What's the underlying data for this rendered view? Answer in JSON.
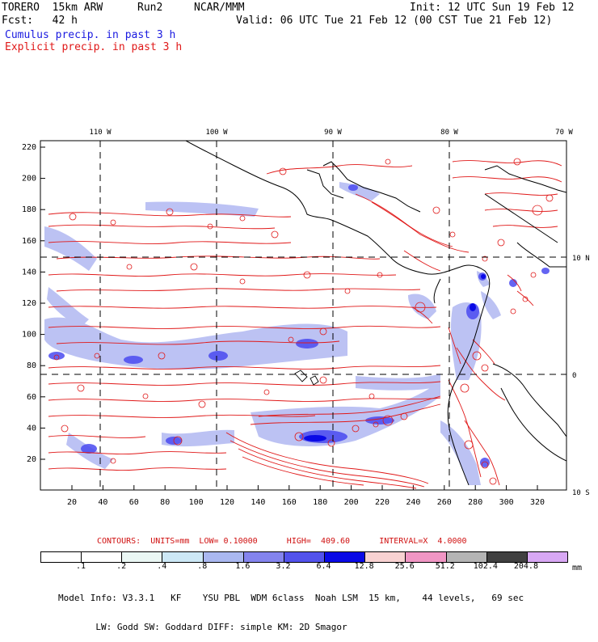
{
  "header": {
    "model": "TORERO  15km ARW",
    "run": "Run2",
    "org": "NCAR/MMM",
    "init": "Init: 12 UTC Sun 19 Feb 12",
    "fcst": "Fcst:   42 h",
    "valid": "Valid: 06 UTC Tue 21 Feb 12 (00 CST Tue 21 Feb 12)",
    "field1": "Cumulus precip. in past 3 h",
    "field2": "Explicit precip. in past 3 h"
  },
  "map": {
    "lon_labels": [
      "110 W",
      "100 W",
      "90 W",
      "80 W",
      "70 W"
    ],
    "lat_labels": [
      "10 N",
      "0",
      "10 S"
    ],
    "y_ticks": [
      "220",
      "200",
      "180",
      "160",
      "140",
      "120",
      "100",
      "80",
      "60",
      "40",
      "20"
    ],
    "x_ticks": [
      "20",
      "40",
      "60",
      "80",
      "100",
      "120",
      "140",
      "160",
      "180",
      "200",
      "220",
      "240",
      "260",
      "280",
      "300",
      "320"
    ],
    "colors": {
      "cumulus": "#4a4af0",
      "explicit": "#e01818",
      "land": "#000000",
      "grid": "#000000"
    }
  },
  "contours_line": "CONTOURS:  UNITS=mm  LOW= 0.10000      HIGH=  409.60      INTERVAL=X  4.0000",
  "colorbar": {
    "labels": [
      ".1",
      ".2",
      ".4",
      ".8",
      "1.6",
      "3.2",
      "6.4",
      "12.8",
      "25.6",
      "51.2",
      "102.4",
      "204.8"
    ],
    "unit": "mm",
    "colors": [
      "#ffffff",
      "#ffffff",
      "#eaf7f4",
      "#cde8f6",
      "#aab8f0",
      "#8484ee",
      "#5252ec",
      "#0a0ae6",
      "#f8d2d2",
      "#f096c4",
      "#b4b4b4",
      "#404040",
      "#d8a8f4"
    ]
  },
  "footer": {
    "line1": "Model Info: V3.3.1   KF    YSU PBL  WDM 6class  Noah LSM  15 km,    44 levels,   69 sec",
    "line2": "       LW: Godd SW: Goddard DIFF: simple KM: 2D Smagor"
  }
}
